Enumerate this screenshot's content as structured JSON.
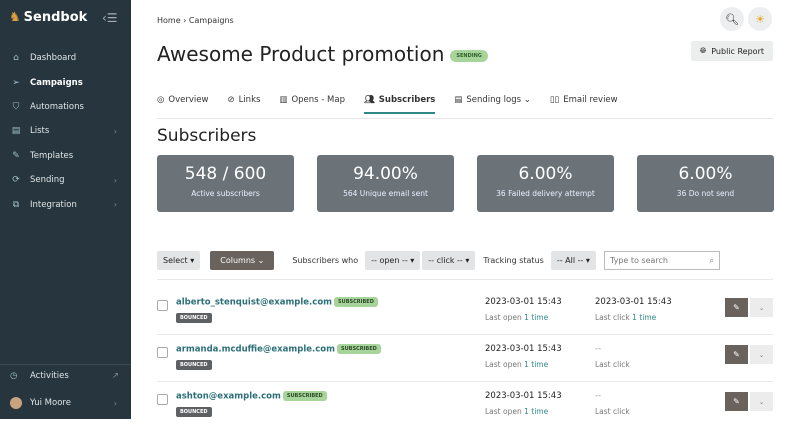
{
  "sidebar": {
    "brand": "Sendbok",
    "items": [
      {
        "label": "Dashboard",
        "icon": "home-icon"
      },
      {
        "label": "Campaigns",
        "icon": "send-icon",
        "active": true
      },
      {
        "label": "Automations",
        "icon": "shield-icon"
      },
      {
        "label": "Lists",
        "icon": "list-icon",
        "chevron": true
      },
      {
        "label": "Templates",
        "icon": "edit-icon"
      },
      {
        "label": "Sending",
        "icon": "sync-icon",
        "chevron": true
      },
      {
        "label": "Integration",
        "icon": "plug-icon",
        "chevron": true
      }
    ],
    "activities": "Activities",
    "user": "Yui Moore"
  },
  "breadcrumb": {
    "home": "Home",
    "current": "Campaigns"
  },
  "title": "Awesome Product promotion",
  "status": "SENDING",
  "public_report": "Public Report",
  "tabs": [
    "Overview",
    "Links",
    "Opens - Map",
    "Subscribers",
    "Sending logs",
    "Email review"
  ],
  "section_title": "Subscribers",
  "stats": [
    {
      "value": "548 / 600",
      "label": "Active subscribers"
    },
    {
      "value": "94.00%",
      "label": "564 Unique email sent"
    },
    {
      "value": "6.00%",
      "label": "36 Failed delivery attempt"
    },
    {
      "value": "6.00%",
      "label": "36 Do not send"
    }
  ],
  "filters": {
    "select": "Select",
    "columns": "Columns",
    "subscribers_who": "Subscribers who",
    "open": "-- open --",
    "click": "-- click --",
    "tracking_status": "Tracking status",
    "all": "-- All --",
    "search_placeholder": "Type to search"
  },
  "rows": [
    {
      "email": "alberto_stenquist@example.com",
      "badge": "SUBSCRIBED",
      "status": "BOUNCED",
      "open_date": "2023-03-01 15:43",
      "open_label": "Last open",
      "open_count": "1 time",
      "click_date": "2023-03-01 15:43",
      "click_label": "Last click",
      "click_count": "1 time"
    },
    {
      "email": "armanda.mcduffie@example.com",
      "badge": "SUBSCRIBED",
      "status": "BOUNCED",
      "open_date": "2023-03-01 15:43",
      "open_label": "Last open",
      "open_count": "1 time",
      "click_date": "--",
      "click_label": "Last click",
      "click_count": ""
    },
    {
      "email": "ashton@example.com",
      "badge": "SUBSCRIBED",
      "status": "BOUNCED",
      "open_date": "2023-03-01 15:43",
      "open_label": "Last open",
      "open_count": "1 time",
      "click_date": "--",
      "click_label": "Last click",
      "click_count": ""
    }
  ]
}
